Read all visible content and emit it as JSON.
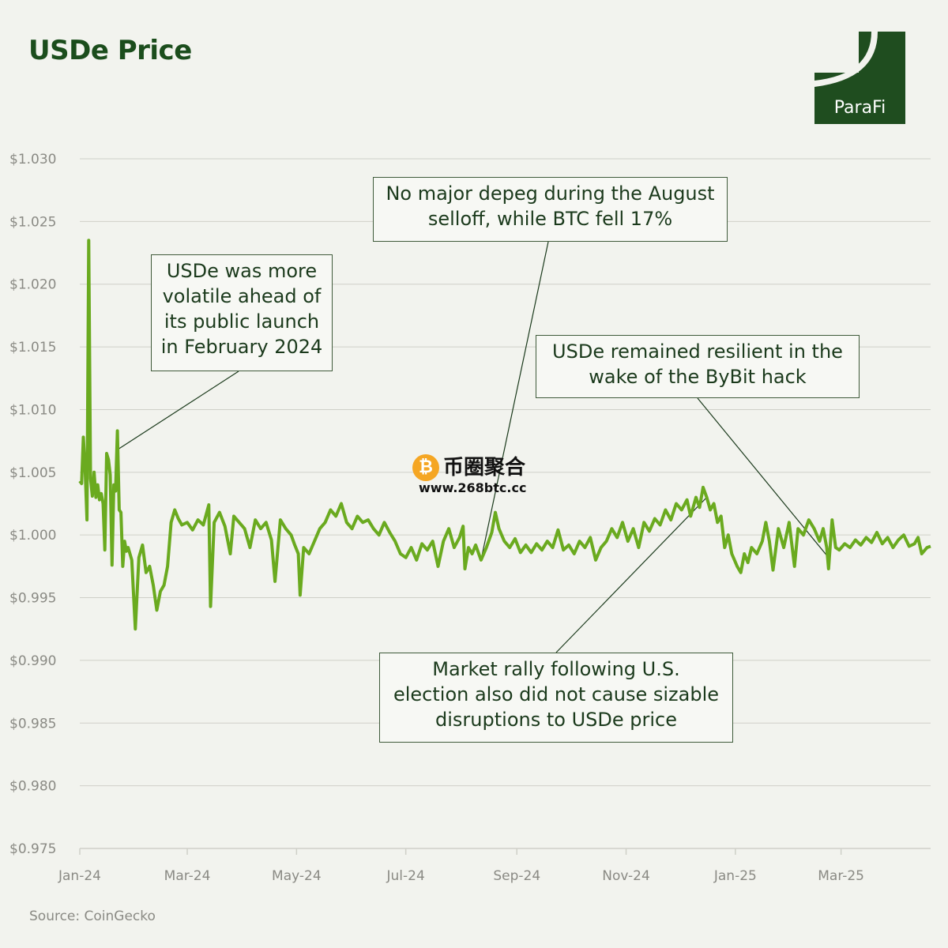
{
  "title": "USDe Price",
  "logo": {
    "text": "ParaFi",
    "color": "#1f4d1f"
  },
  "source": "Source: CoinGecko",
  "watermark": {
    "name": "币圈聚合",
    "url": "www.268btc.cc",
    "icon": "bitcoin-icon"
  },
  "colors": {
    "line": "#6aaa1f",
    "grid": "#cfd0c8",
    "text": "#1b4d1c"
  },
  "annotations": [
    {
      "id": "launch",
      "lines": [
        "USDe was more",
        "volatile ahead of",
        "its public launch",
        "in February 2024"
      ]
    },
    {
      "id": "august",
      "lines": [
        "No major depeg during the August",
        "selloff, while BTC fell 17%"
      ]
    },
    {
      "id": "bybit",
      "lines": [
        "USDe remained resilient in the",
        "wake of the ByBit hack"
      ]
    },
    {
      "id": "election",
      "lines": [
        "Market rally following U.S.",
        "election also did not cause sizable",
        "disruptions to USDe price"
      ]
    }
  ],
  "chart_data": {
    "type": "line",
    "title": "USDe Price",
    "xlabel": "",
    "ylabel": "",
    "ylim": [
      0.975,
      1.03
    ],
    "y_ticks": [
      "$1.030",
      "$1.025",
      "$1.020",
      "$1.015",
      "$1.010",
      "$1.005",
      "$1.000",
      "$0.995",
      "$0.990",
      "$0.985",
      "$0.980",
      "$0.975"
    ],
    "x_ticks": [
      "Jan-24",
      "Mar-24",
      "May-24",
      "Jul-24",
      "Sep-24",
      "Nov-24",
      "Jan-25",
      "Mar-25"
    ],
    "x_range": [
      "2024-01-01",
      "2025-04-20"
    ],
    "grid": true,
    "legend": "none",
    "series": [
      {
        "name": "",
        "points": [
          [
            "2024-01-01",
            1.0043
          ],
          [
            "2024-01-02",
            1.0041
          ],
          [
            "2024-01-03",
            1.0078
          ],
          [
            "2024-01-04",
            1.0052
          ],
          [
            "2024-01-05",
            1.0012
          ],
          [
            "2024-01-06",
            1.0235
          ],
          [
            "2024-01-07",
            1.0045
          ],
          [
            "2024-01-08",
            1.0031
          ],
          [
            "2024-01-09",
            1.005
          ],
          [
            "2024-01-10",
            1.003
          ],
          [
            "2024-01-11",
            1.004
          ],
          [
            "2024-01-12",
            1.0028
          ],
          [
            "2024-01-13",
            1.0033
          ],
          [
            "2024-01-14",
            1.0025
          ],
          [
            "2024-01-15",
            0.9988
          ],
          [
            "2024-01-16",
            1.0065
          ],
          [
            "2024-01-17",
            1.006
          ],
          [
            "2024-01-18",
            1.0048
          ],
          [
            "2024-01-19",
            0.9976
          ],
          [
            "2024-01-20",
            1.004
          ],
          [
            "2024-01-21",
            1.0035
          ],
          [
            "2024-01-22",
            1.0083
          ],
          [
            "2024-01-23",
            1.002
          ],
          [
            "2024-01-24",
            1.0018
          ],
          [
            "2024-01-25",
            0.9975
          ],
          [
            "2024-01-26",
            0.9995
          ],
          [
            "2024-01-27",
            0.9987
          ],
          [
            "2024-01-28",
            0.999
          ],
          [
            "2024-01-30",
            0.998
          ],
          [
            "2024-02-01",
            0.9925
          ],
          [
            "2024-02-03",
            0.9982
          ],
          [
            "2024-02-05",
            0.9992
          ],
          [
            "2024-02-07",
            0.997
          ],
          [
            "2024-02-09",
            0.9975
          ],
          [
            "2024-02-11",
            0.996
          ],
          [
            "2024-02-13",
            0.994
          ],
          [
            "2024-02-15",
            0.9955
          ],
          [
            "2024-02-17",
            0.996
          ],
          [
            "2024-02-19",
            0.9975
          ],
          [
            "2024-02-21",
            1.001
          ],
          [
            "2024-02-23",
            1.002
          ],
          [
            "2024-02-25",
            1.0013
          ],
          [
            "2024-02-27",
            1.0008
          ],
          [
            "2024-03-01",
            1.001
          ],
          [
            "2024-03-04",
            1.0004
          ],
          [
            "2024-03-07",
            1.0012
          ],
          [
            "2024-03-10",
            1.0008
          ],
          [
            "2024-03-13",
            1.0024
          ],
          [
            "2024-03-14",
            0.9943
          ],
          [
            "2024-03-16",
            1.001
          ],
          [
            "2024-03-19",
            1.0018
          ],
          [
            "2024-03-22",
            1.0007
          ],
          [
            "2024-03-25",
            0.9985
          ],
          [
            "2024-03-27",
            1.0015
          ],
          [
            "2024-03-30",
            1.001
          ],
          [
            "2024-04-02",
            1.0005
          ],
          [
            "2024-04-05",
            0.999
          ],
          [
            "2024-04-08",
            1.0012
          ],
          [
            "2024-04-11",
            1.0005
          ],
          [
            "2024-04-14",
            1.001
          ],
          [
            "2024-04-17",
            0.9996
          ],
          [
            "2024-04-19",
            0.9963
          ],
          [
            "2024-04-22",
            1.0012
          ],
          [
            "2024-04-25",
            1.0005
          ],
          [
            "2024-04-28",
            1.0
          ],
          [
            "2024-04-30",
            0.9992
          ],
          [
            "2024-05-02",
            0.9985
          ],
          [
            "2024-05-03",
            0.9952
          ],
          [
            "2024-05-05",
            0.999
          ],
          [
            "2024-05-08",
            0.9985
          ],
          [
            "2024-05-11",
            0.9995
          ],
          [
            "2024-05-14",
            1.0005
          ],
          [
            "2024-05-17",
            1.001
          ],
          [
            "2024-05-20",
            1.002
          ],
          [
            "2024-05-23",
            1.0015
          ],
          [
            "2024-05-26",
            1.0025
          ],
          [
            "2024-05-29",
            1.001
          ],
          [
            "2024-06-01",
            1.0005
          ],
          [
            "2024-06-04",
            1.0015
          ],
          [
            "2024-06-07",
            1.001
          ],
          [
            "2024-06-10",
            1.0012
          ],
          [
            "2024-06-13",
            1.0005
          ],
          [
            "2024-06-16",
            1.0
          ],
          [
            "2024-06-19",
            1.001
          ],
          [
            "2024-06-22",
            1.0002
          ],
          [
            "2024-06-25",
            0.9995
          ],
          [
            "2024-06-28",
            0.9985
          ],
          [
            "2024-07-01",
            0.9982
          ],
          [
            "2024-07-04",
            0.999
          ],
          [
            "2024-07-07",
            0.998
          ],
          [
            "2024-07-10",
            0.9993
          ],
          [
            "2024-07-13",
            0.9988
          ],
          [
            "2024-07-16",
            0.9995
          ],
          [
            "2024-07-19",
            0.9975
          ],
          [
            "2024-07-22",
            0.9995
          ],
          [
            "2024-07-25",
            1.0005
          ],
          [
            "2024-07-28",
            0.999
          ],
          [
            "2024-07-31",
            0.9998
          ],
          [
            "2024-08-02",
            1.0007
          ],
          [
            "2024-08-03",
            0.9973
          ],
          [
            "2024-08-05",
            0.999
          ],
          [
            "2024-08-07",
            0.9985
          ],
          [
            "2024-08-09",
            0.9992
          ],
          [
            "2024-08-12",
            0.998
          ],
          [
            "2024-08-15",
            0.999
          ],
          [
            "2024-08-18",
            1.0002
          ],
          [
            "2024-08-20",
            1.0018
          ],
          [
            "2024-08-22",
            1.0005
          ],
          [
            "2024-08-25",
            0.9995
          ],
          [
            "2024-08-28",
            0.999
          ],
          [
            "2024-08-31",
            0.9997
          ],
          [
            "2024-09-03",
            0.9986
          ],
          [
            "2024-09-06",
            0.9992
          ],
          [
            "2024-09-09",
            0.9986
          ],
          [
            "2024-09-12",
            0.9993
          ],
          [
            "2024-09-15",
            0.9988
          ],
          [
            "2024-09-18",
            0.9995
          ],
          [
            "2024-09-21",
            0.999
          ],
          [
            "2024-09-24",
            1.0004
          ],
          [
            "2024-09-27",
            0.9988
          ],
          [
            "2024-09-30",
            0.9992
          ],
          [
            "2024-10-03",
            0.9985
          ],
          [
            "2024-10-06",
            0.9995
          ],
          [
            "2024-10-09",
            0.999
          ],
          [
            "2024-10-12",
            0.9998
          ],
          [
            "2024-10-15",
            0.998
          ],
          [
            "2024-10-18",
            0.999
          ],
          [
            "2024-10-21",
            0.9995
          ],
          [
            "2024-10-24",
            1.0005
          ],
          [
            "2024-10-27",
            0.9998
          ],
          [
            "2024-10-30",
            1.001
          ],
          [
            "2024-11-02",
            0.9995
          ],
          [
            "2024-11-05",
            1.0005
          ],
          [
            "2024-11-08",
            0.999
          ],
          [
            "2024-11-11",
            1.001
          ],
          [
            "2024-11-14",
            1.0003
          ],
          [
            "2024-11-17",
            1.0013
          ],
          [
            "2024-11-20",
            1.0008
          ],
          [
            "2024-11-23",
            1.002
          ],
          [
            "2024-11-26",
            1.0012
          ],
          [
            "2024-11-29",
            1.0025
          ],
          [
            "2024-12-02",
            1.002
          ],
          [
            "2024-12-05",
            1.0028
          ],
          [
            "2024-12-07",
            1.0015
          ],
          [
            "2024-12-10",
            1.003
          ],
          [
            "2024-12-12",
            1.0022
          ],
          [
            "2024-12-14",
            1.0038
          ],
          [
            "2024-12-16",
            1.003
          ],
          [
            "2024-12-18",
            1.002
          ],
          [
            "2024-12-20",
            1.0025
          ],
          [
            "2024-12-22",
            1.001
          ],
          [
            "2024-12-24",
            1.0015
          ],
          [
            "2024-12-26",
            0.999
          ],
          [
            "2024-12-28",
            1.0
          ],
          [
            "2024-12-30",
            0.9985
          ],
          [
            "2025-01-02",
            0.9975
          ],
          [
            "2025-01-04",
            0.997
          ],
          [
            "2025-01-06",
            0.9985
          ],
          [
            "2025-01-08",
            0.9978
          ],
          [
            "2025-01-10",
            0.999
          ],
          [
            "2025-01-13",
            0.9985
          ],
          [
            "2025-01-16",
            0.9995
          ],
          [
            "2025-01-18",
            1.001
          ],
          [
            "2025-01-20",
            0.9995
          ],
          [
            "2025-01-22",
            0.9972
          ],
          [
            "2025-01-25",
            1.0005
          ],
          [
            "2025-01-28",
            0.999
          ],
          [
            "2025-01-31",
            1.001
          ],
          [
            "2025-02-03",
            0.9975
          ],
          [
            "2025-02-05",
            1.0005
          ],
          [
            "2025-02-08",
            1.0
          ],
          [
            "2025-02-11",
            1.0012
          ],
          [
            "2025-02-14",
            1.0005
          ],
          [
            "2025-02-17",
            0.9995
          ],
          [
            "2025-02-19",
            1.0005
          ],
          [
            "2025-02-21",
            0.999
          ],
          [
            "2025-02-22",
            0.9973
          ],
          [
            "2025-02-24",
            1.0012
          ],
          [
            "2025-02-26",
            0.999
          ],
          [
            "2025-02-28",
            0.9988
          ],
          [
            "2025-03-03",
            0.9993
          ],
          [
            "2025-03-06",
            0.999
          ],
          [
            "2025-03-09",
            0.9996
          ],
          [
            "2025-03-12",
            0.9992
          ],
          [
            "2025-03-15",
            0.9998
          ],
          [
            "2025-03-18",
            0.9994
          ],
          [
            "2025-03-21",
            1.0002
          ],
          [
            "2025-03-24",
            0.9993
          ],
          [
            "2025-03-27",
            0.9998
          ],
          [
            "2025-03-30",
            0.999
          ],
          [
            "2025-04-02",
            0.9996
          ],
          [
            "2025-04-05",
            1.0
          ],
          [
            "2025-04-08",
            0.9991
          ],
          [
            "2025-04-11",
            0.9993
          ],
          [
            "2025-04-13",
            0.9998
          ],
          [
            "2025-04-15",
            0.9985
          ],
          [
            "2025-04-18",
            0.999
          ],
          [
            "2025-04-20",
            0.9991
          ]
        ]
      }
    ]
  }
}
